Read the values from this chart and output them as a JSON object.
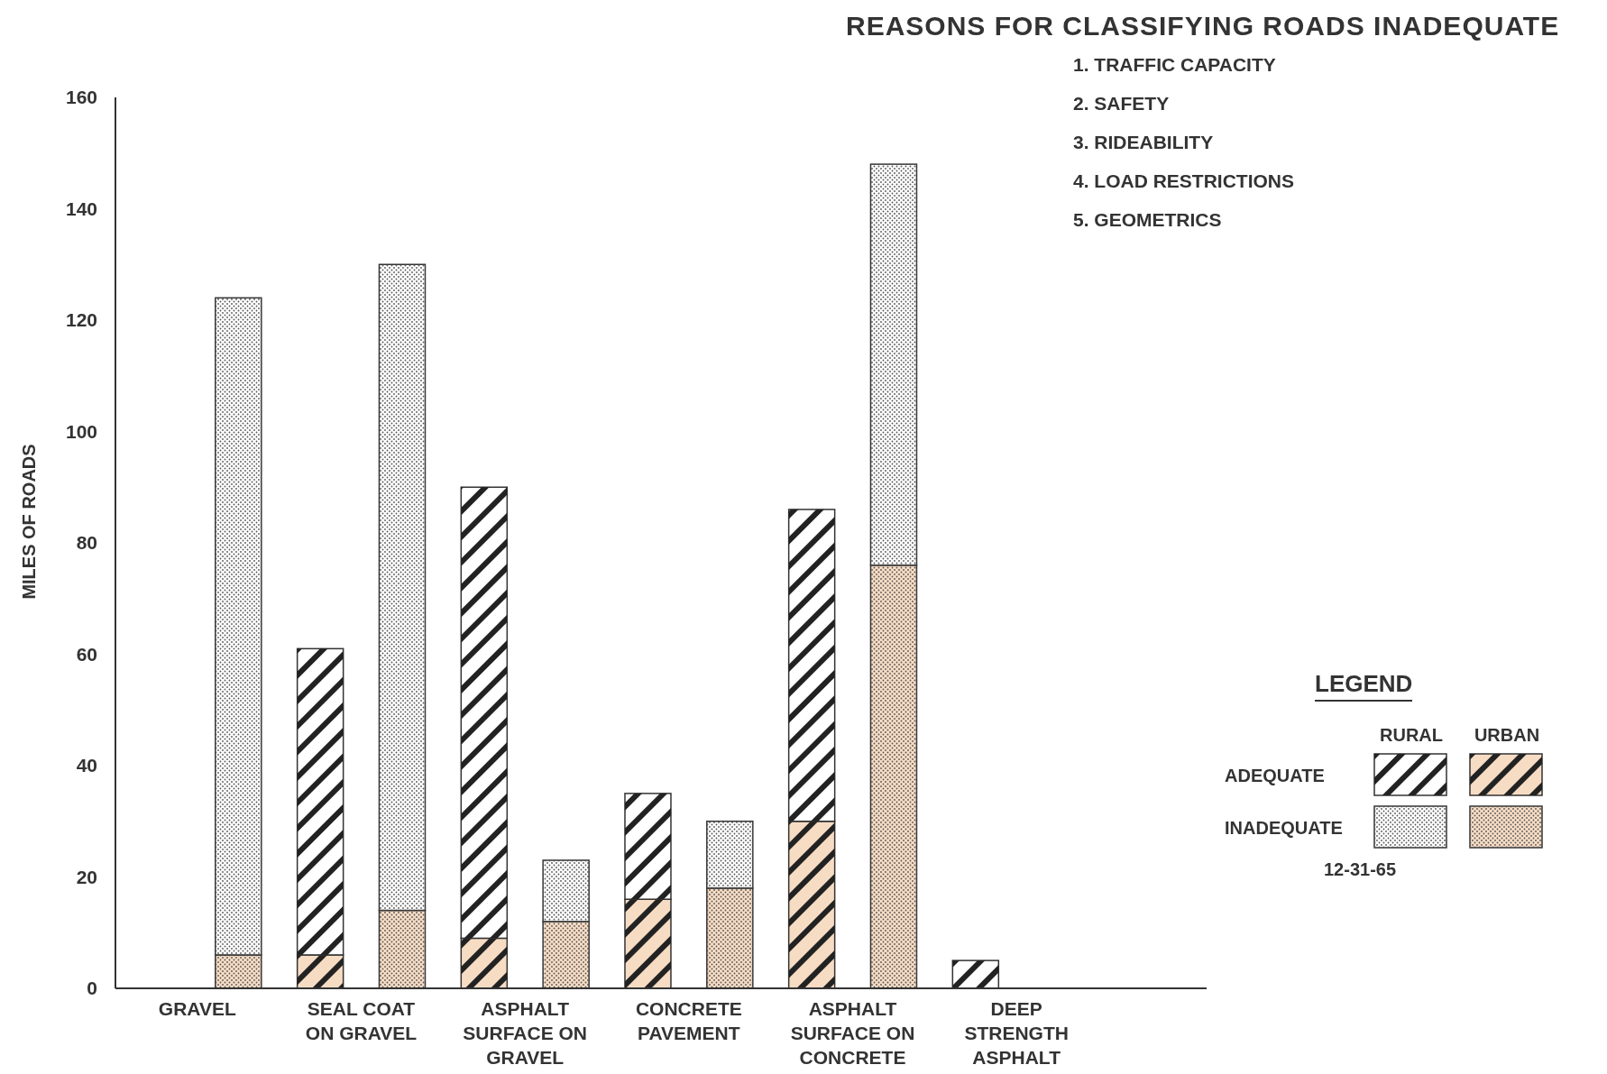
{
  "chart_data": {
    "type": "bar",
    "title": "REASONS FOR CLASSIFYING ROADS INADEQUATE",
    "ylabel": "MILES OF ROADS",
    "legend_title": "LEGEND",
    "annotations": [
      "1. TRAFFIC CAPACITY",
      "2. SAFETY",
      "3. RIDEABILITY",
      "4. LOAD RESTRICTIONS",
      "5. GEOMETRICS",
      "ADEQUATE",
      "INADEQUATE",
      "12-31-65"
    ],
    "categories": [
      "GRAVEL",
      null,
      "SEAL COAT ON GRAVEL",
      null,
      "ASPHALT SURFACE ON GRAVEL",
      null,
      "CONCRETE PAVEMENT",
      null,
      "ASPHALT SURFACE ON CONCRETE",
      null,
      "DEEP STRENGTH ASPHALT",
      null
    ],
    "stacked": true,
    "series": [
      {
        "name": "URBAN",
        "color": "#f7dcc4",
        "values": [
          null,
          6,
          6,
          14,
          9,
          12,
          16,
          18,
          30,
          76,
          0,
          null
        ]
      },
      {
        "name": "RURAL",
        "color": "#ffffff",
        "values": [
          null,
          118,
          55,
          116,
          81,
          11,
          19,
          12,
          56,
          72,
          5,
          null
        ]
      }
    ],
    "ylim": [
      0,
      160
    ],
    "yticks": [
      0,
      20,
      40,
      60,
      80,
      100,
      120,
      140,
      160
    ],
    "grid": false,
    "legend": "right"
  }
}
